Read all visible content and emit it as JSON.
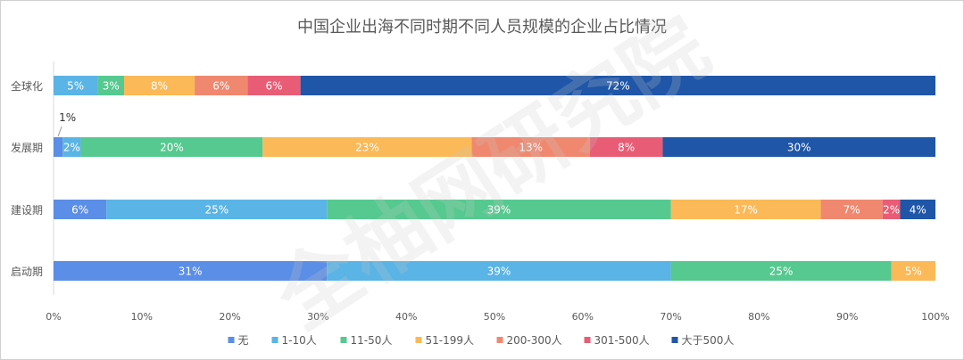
{
  "title": "中国企业出海不同时期不同人员规模的企业占比情况",
  "watermark": "全柚网研究院",
  "chart_data": {
    "type": "bar",
    "orientation": "horizontal",
    "stacked": "percent",
    "title": "中国企业出海不同时期不同人员规模的企业占比情况",
    "categories": [
      "全球化",
      "发展期",
      "建设期",
      "启动期"
    ],
    "xlim": [
      0,
      100
    ],
    "xticks": [
      "0%",
      "10%",
      "20%",
      "30%",
      "40%",
      "50%",
      "60%",
      "70%",
      "80%",
      "90%",
      "100%"
    ],
    "grid": false,
    "legend_position": "bottom",
    "series": [
      {
        "name": "无",
        "color": "#5b8ee6",
        "values": [
          0,
          1,
          6,
          31
        ]
      },
      {
        "name": "1-10人",
        "color": "#5ab4e5",
        "values": [
          5,
          2,
          25,
          39
        ]
      },
      {
        "name": "11-50人",
        "color": "#55c98f",
        "values": [
          3,
          20,
          39,
          25
        ]
      },
      {
        "name": "51-199人",
        "color": "#fbb957",
        "values": [
          8,
          23,
          17,
          5
        ]
      },
      {
        "name": "200-300人",
        "color": "#f0886f",
        "values": [
          6,
          13,
          7,
          0
        ]
      },
      {
        "name": "301-500人",
        "color": "#e95c75",
        "values": [
          6,
          8,
          2,
          0
        ]
      },
      {
        "name": "大于500人",
        "color": "#1f56a8",
        "values": [
          72,
          30,
          4,
          0
        ]
      }
    ]
  }
}
